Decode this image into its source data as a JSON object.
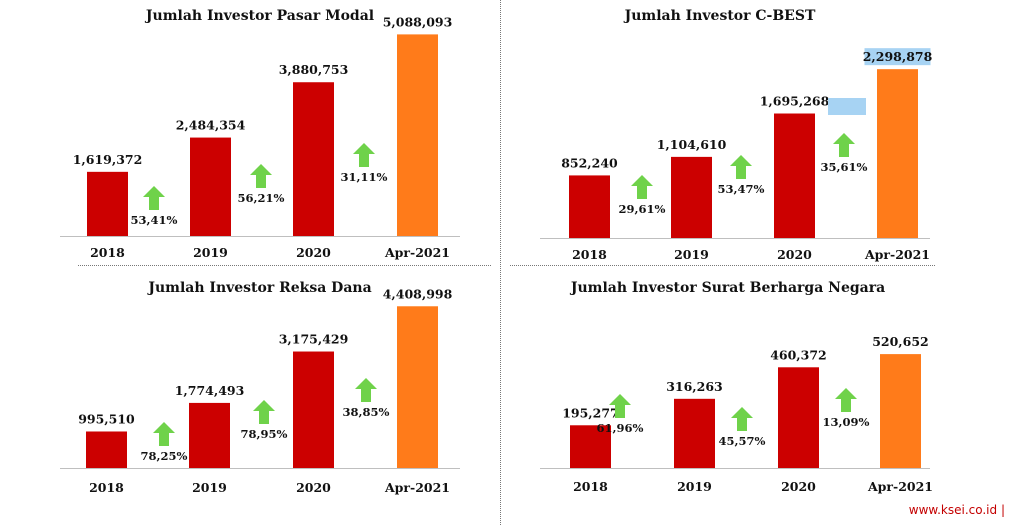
{
  "colors": {
    "bar": "#cc0000",
    "highlight": "#ff7b1a",
    "arrow": "#6fd24a",
    "highlight_box": "#a7d3f3"
  },
  "chart_data": [
    {
      "type": "bar",
      "title": "Jumlah Investor Pasar Modal",
      "categories": [
        "2018",
        "2019",
        "2020",
        "Apr-2021"
      ],
      "values": [
        1619372,
        2484354,
        3880753,
        5088093
      ],
      "value_labels": [
        "1,619,372",
        "2,484,354",
        "3,880,753",
        "5,088,093"
      ],
      "growth": [
        "53,41%",
        "56,21%",
        "31,11%"
      ],
      "ylim": [
        0,
        5300000
      ]
    },
    {
      "type": "bar",
      "title": "Jumlah Investor C-BEST",
      "categories": [
        "2018",
        "2019",
        "2020",
        "Apr-2021"
      ],
      "values": [
        852240,
        1104610,
        1695268,
        2298878
      ],
      "value_labels": [
        "852,240",
        "1,104,610",
        "1,695,268",
        "2,298,878"
      ],
      "growth": [
        "29,61%",
        "53,47%",
        "35,61%"
      ],
      "ylim": [
        0,
        2560000
      ]
    },
    {
      "type": "bar",
      "title": "Jumlah Investor Reksa Dana",
      "categories": [
        "2018",
        "2019",
        "2020",
        "Apr-2021"
      ],
      "values": [
        995510,
        1774493,
        3175429,
        4408998
      ],
      "value_labels": [
        "995,510",
        "1,774,493",
        "3,175,429",
        "4,408,998"
      ],
      "growth": [
        "78,25%",
        "78,95%",
        "38,85%"
      ],
      "ylim": [
        0,
        4580000
      ]
    },
    {
      "type": "bar",
      "title": "Jumlah Investor Surat Berharga Negara",
      "categories": [
        "2018",
        "2019",
        "2020",
        "Apr-2021"
      ],
      "values": [
        195277,
        316263,
        460372,
        520652
      ],
      "value_labels": [
        "195,277",
        "316,263",
        "460,372",
        "520,652"
      ],
      "growth": [
        "61,96%",
        "45,57%",
        "13,09%"
      ],
      "ylim": [
        0,
        640000
      ]
    }
  ],
  "footer": {
    "text": "www.ksei.co.id |"
  }
}
